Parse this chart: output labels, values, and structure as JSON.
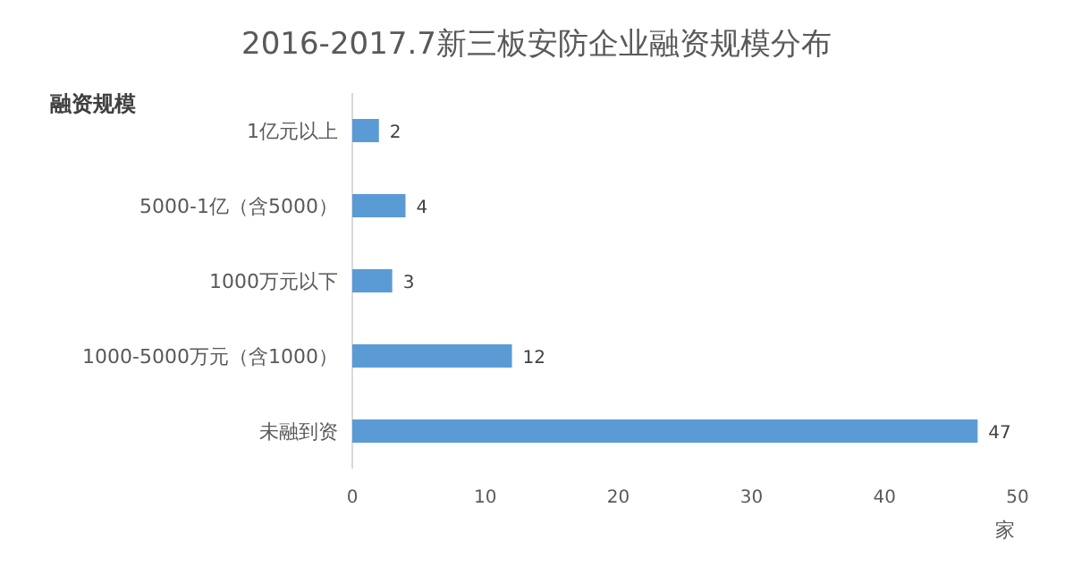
{
  "chart_data": {
    "type": "bar",
    "orientation": "horizontal",
    "title": "2016-2017.7新三板安防企业融资规模分布",
    "ylabel": "融资规模",
    "xlabel": "家",
    "categories": [
      "1亿元以上",
      "5000-1亿（含5000）",
      "1000万元以下",
      "1000-5000万元（含1000）",
      "未融到资"
    ],
    "values": [
      2,
      4,
      3,
      12,
      47
    ],
    "color": "#5b9bd5",
    "data_labels": true,
    "xlim": [
      0,
      50
    ],
    "xticks": [
      0,
      10,
      20,
      30,
      40,
      50
    ],
    "grid": false
  }
}
